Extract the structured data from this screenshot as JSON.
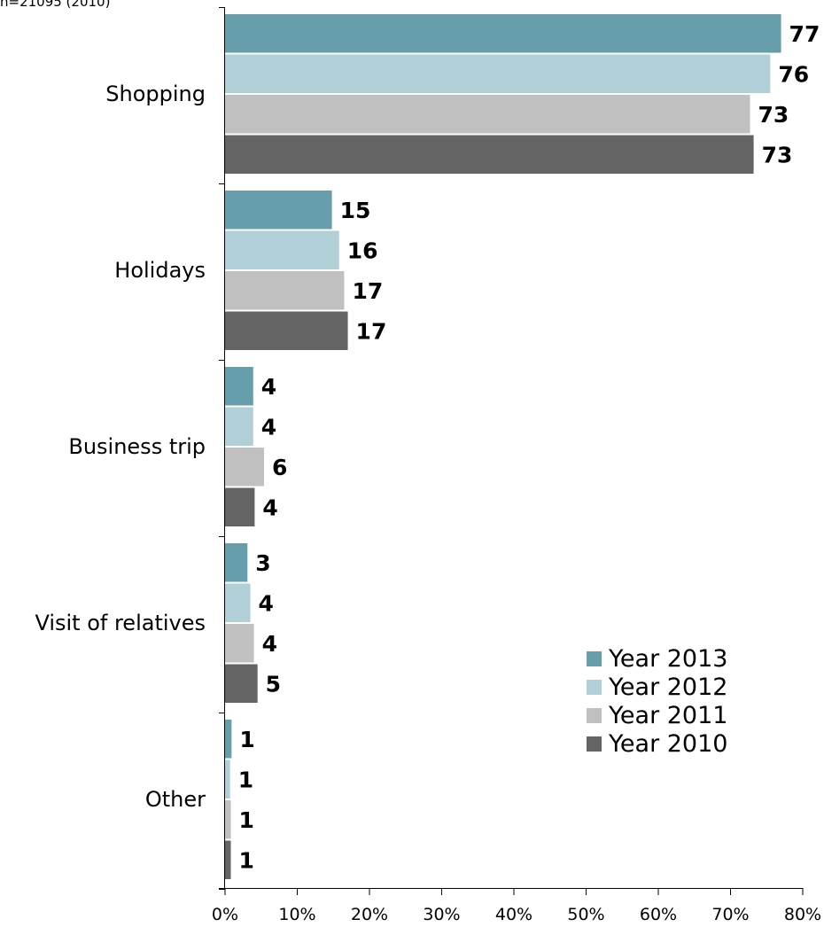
{
  "top_note": "n=21095 (2010)",
  "chart_data": {
    "type": "bar",
    "orientation": "horizontal",
    "title": "",
    "xlabel": "",
    "ylabel": "",
    "categories": [
      "Shopping",
      "Holidays",
      "Business trip",
      "Visit of relatives",
      "Other"
    ],
    "xlim": [
      0,
      80
    ],
    "x_ticks": [
      0,
      10,
      20,
      30,
      40,
      50,
      60,
      70,
      80
    ],
    "x_tick_labels": [
      "0%",
      "10%",
      "20%",
      "30%",
      "40%",
      "50%",
      "60%",
      "70%",
      "80%"
    ],
    "grid": false,
    "legend_position": "bottom-right",
    "series": [
      {
        "name": "Year 2013",
        "color": "#669FAB",
        "values": [
          77,
          15,
          4,
          3,
          1
        ],
        "plot_values": [
          77,
          14.8,
          3.9,
          3.1,
          0.9
        ]
      },
      {
        "name": "Year 2012",
        "color": "#B0CFD7",
        "values": [
          76,
          16,
          4,
          4,
          1
        ],
        "plot_values": [
          75.5,
          15.8,
          3.9,
          3.5,
          0.7
        ]
      },
      {
        "name": "Year 2011",
        "color": "#C0C0C0",
        "values": [
          73,
          17,
          6,
          4,
          1
        ],
        "plot_values": [
          72.7,
          16.5,
          5.4,
          4.0,
          0.8
        ]
      },
      {
        "name": "Year 2010",
        "color": "#646464",
        "values": [
          73,
          17,
          4,
          5,
          1
        ],
        "plot_values": [
          73.2,
          17.0,
          4.1,
          4.5,
          0.8
        ]
      }
    ]
  }
}
